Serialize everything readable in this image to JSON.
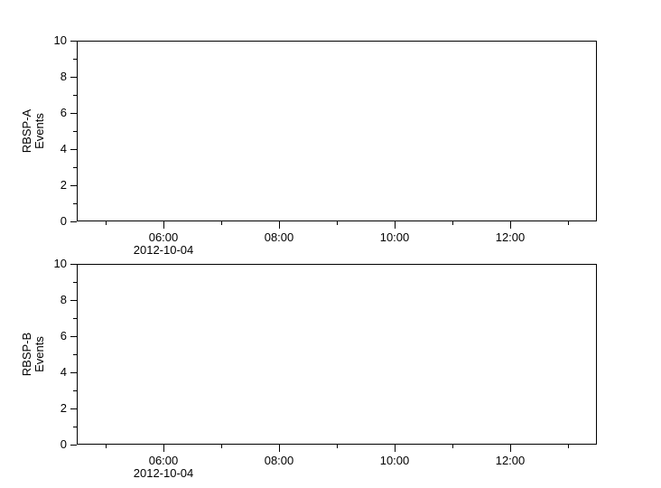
{
  "figure": {
    "background_color": "#ffffff",
    "axis_color": "#000000",
    "text_color": "#000000"
  },
  "chart_data": [
    {
      "type": "line",
      "panel": "RBSP-A",
      "ylabel_lines": [
        "RBSP-A",
        "Events"
      ],
      "ylim": [
        0,
        10
      ],
      "y_major_ticks": [
        0,
        2,
        4,
        6,
        8,
        10
      ],
      "y_major_tick_labels": [
        "0",
        "2",
        "4",
        "6",
        "8",
        "10"
      ],
      "y_minor_ticks": [
        1,
        3,
        5,
        7,
        9
      ],
      "x_range_hours": [
        4.5,
        13.5
      ],
      "x_major_ticks": [
        {
          "hour": 6,
          "label": "06:00"
        },
        {
          "hour": 8,
          "label": "08:00"
        },
        {
          "hour": 10,
          "label": "10:00"
        },
        {
          "hour": 12,
          "label": "12:00"
        }
      ],
      "x_minor_tick_hours": [
        5,
        7,
        9,
        11,
        13
      ],
      "x_date_label": "2012-10-04",
      "x_date_label_under_hour": 6,
      "grid": false,
      "legend": null,
      "series": []
    },
    {
      "type": "line",
      "panel": "RBSP-B",
      "ylabel_lines": [
        "RBSP-B",
        "Events"
      ],
      "ylim": [
        0,
        10
      ],
      "y_major_ticks": [
        0,
        2,
        4,
        6,
        8,
        10
      ],
      "y_major_tick_labels": [
        "0",
        "2",
        "4",
        "6",
        "8",
        "10"
      ],
      "y_minor_ticks": [
        1,
        3,
        5,
        7,
        9
      ],
      "x_range_hours": [
        4.5,
        13.5
      ],
      "x_major_ticks": [
        {
          "hour": 6,
          "label": "06:00"
        },
        {
          "hour": 8,
          "label": "08:00"
        },
        {
          "hour": 10,
          "label": "10:00"
        },
        {
          "hour": 12,
          "label": "12:00"
        }
      ],
      "x_minor_tick_hours": [
        5,
        7,
        9,
        11,
        13
      ],
      "x_date_label": "2012-10-04",
      "x_date_label_under_hour": 6,
      "grid": false,
      "legend": null,
      "series": []
    }
  ]
}
